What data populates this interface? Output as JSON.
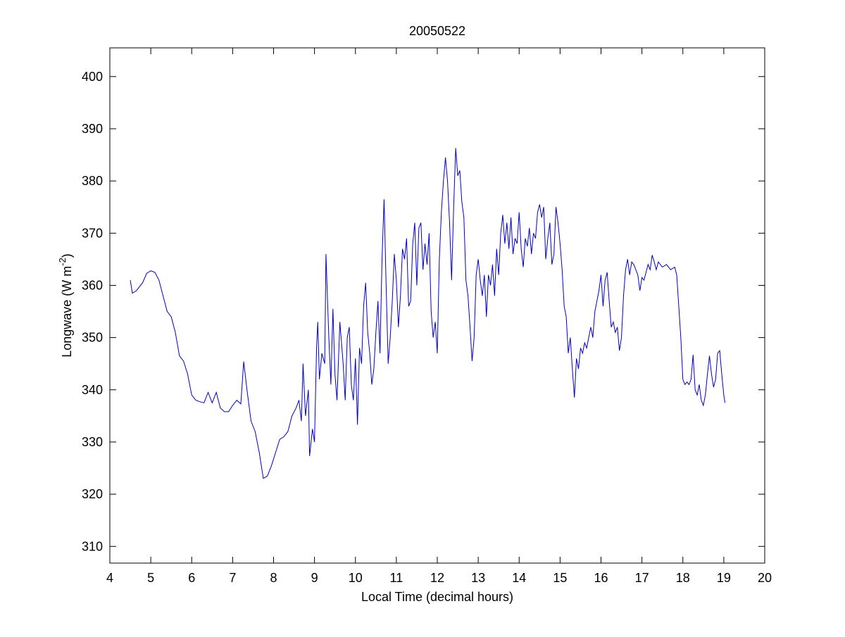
{
  "chart_data": {
    "type": "line",
    "title": "20050522",
    "xlabel": "Local Time (decimal hours)",
    "ylabel": {
      "text": "Longwave (W m",
      "superscript": "-2",
      "suffix": ")"
    },
    "xlim": [
      4,
      20
    ],
    "xticks": [
      4,
      5,
      6,
      7,
      8,
      9,
      10,
      11,
      12,
      13,
      14,
      15,
      16,
      17,
      18,
      19,
      20
    ],
    "ylim": [
      306.8,
      405.5
    ],
    "yticks": [
      310,
      320,
      330,
      340,
      350,
      360,
      370,
      380,
      390,
      400
    ],
    "grid": false,
    "box": true,
    "series": [
      {
        "color": "#0000c8",
        "x": [
          4.5,
          4.55,
          4.65,
          4.8,
          4.9,
          5.0,
          5.1,
          5.2,
          5.3,
          5.4,
          5.5,
          5.6,
          5.7,
          5.8,
          5.9,
          6.0,
          6.1,
          6.2,
          6.3,
          6.4,
          6.5,
          6.6,
          6.7,
          6.8,
          6.9,
          7.0,
          7.1,
          7.2,
          7.27,
          7.35,
          7.45,
          7.55,
          7.65,
          7.75,
          7.85,
          7.95,
          8.05,
          8.15,
          8.25,
          8.35,
          8.45,
          8.55,
          8.62,
          8.68,
          8.72,
          8.78,
          8.85,
          8.88,
          8.95,
          9.0,
          9.05,
          9.08,
          9.12,
          9.18,
          9.25,
          9.28,
          9.35,
          9.4,
          9.45,
          9.5,
          9.55,
          9.62,
          9.7,
          9.75,
          9.8,
          9.85,
          9.9,
          9.95,
          10.0,
          10.05,
          10.1,
          10.15,
          10.2,
          10.25,
          10.3,
          10.35,
          10.4,
          10.45,
          10.5,
          10.55,
          10.6,
          10.65,
          10.7,
          10.75,
          10.8,
          10.85,
          10.9,
          10.95,
          11.0,
          11.05,
          11.1,
          11.15,
          11.2,
          11.25,
          11.3,
          11.35,
          11.4,
          11.45,
          11.5,
          11.55,
          11.6,
          11.65,
          11.7,
          11.75,
          11.8,
          11.85,
          11.9,
          11.95,
          12.0,
          12.05,
          12.1,
          12.15,
          12.2,
          12.25,
          12.3,
          12.35,
          12.4,
          12.45,
          12.5,
          12.55,
          12.6,
          12.65,
          12.7,
          12.75,
          12.8,
          12.85,
          12.9,
          12.95,
          13.0,
          13.05,
          13.1,
          13.15,
          13.2,
          13.25,
          13.3,
          13.35,
          13.4,
          13.45,
          13.5,
          13.55,
          13.6,
          13.65,
          13.7,
          13.75,
          13.8,
          13.85,
          13.9,
          13.95,
          14.0,
          14.05,
          14.1,
          14.15,
          14.2,
          14.25,
          14.3,
          14.35,
          14.4,
          14.45,
          14.5,
          14.55,
          14.6,
          14.65,
          14.7,
          14.75,
          14.8,
          14.85,
          14.9,
          14.95,
          15.0,
          15.05,
          15.1,
          15.15,
          15.2,
          15.25,
          15.3,
          15.35,
          15.4,
          15.45,
          15.5,
          15.55,
          15.6,
          15.65,
          15.7,
          15.75,
          15.8,
          15.85,
          15.9,
          15.95,
          16.0,
          16.05,
          16.1,
          16.15,
          16.2,
          16.25,
          16.3,
          16.35,
          16.4,
          16.45,
          16.5,
          16.55,
          16.6,
          16.65,
          16.7,
          16.75,
          16.8,
          16.85,
          16.9,
          16.95,
          17.0,
          17.05,
          17.1,
          17.15,
          17.2,
          17.25,
          17.3,
          17.35,
          17.4,
          17.5,
          17.6,
          17.7,
          17.8,
          17.85,
          17.9,
          17.95,
          18.0,
          18.05,
          18.1,
          18.15,
          18.2,
          18.25,
          18.3,
          18.35,
          18.4,
          18.45,
          18.5,
          18.55,
          18.6,
          18.65,
          18.7,
          18.75,
          18.8,
          18.85,
          18.9,
          18.95,
          19.0,
          19.03
        ],
        "values": [
          361,
          358.5,
          359,
          360.5,
          362.3,
          362.8,
          362.5,
          361,
          358,
          355,
          354,
          351,
          346.5,
          345.5,
          343,
          339,
          338,
          337.7,
          337.5,
          339.5,
          337.5,
          339.5,
          336.5,
          335.8,
          335.8,
          337,
          338,
          337.3,
          345.4,
          340,
          334,
          332,
          328,
          323,
          323.5,
          325.5,
          328,
          330.5,
          331,
          332,
          335,
          336.5,
          338,
          334,
          345,
          335,
          340,
          327.3,
          332.5,
          330,
          348,
          353,
          342,
          347,
          345,
          366,
          350,
          341,
          355.5,
          343,
          338,
          353,
          345,
          338,
          350,
          352,
          341,
          338,
          346,
          333.3,
          348,
          345,
          356,
          360.5,
          351,
          347,
          341,
          344,
          351,
          357,
          347,
          365,
          376.5,
          360,
          345,
          350,
          357,
          366,
          361,
          352,
          358,
          367,
          365,
          369,
          356,
          357,
          368,
          372,
          360,
          371,
          372,
          363,
          368,
          364,
          370,
          355,
          350,
          353,
          347,
          365,
          374,
          380,
          384.5,
          380,
          372,
          361,
          375,
          386.3,
          381,
          382,
          376,
          373,
          361,
          358,
          352,
          345.5,
          350,
          362,
          365,
          361,
          358,
          362,
          354,
          362,
          360,
          364,
          358,
          367,
          362,
          370,
          373.5,
          368,
          372,
          367,
          373,
          366,
          369,
          368,
          374,
          367,
          363.5,
          369,
          367.5,
          371,
          366,
          370,
          369,
          374,
          375.5,
          373,
          375,
          365,
          369,
          372,
          364,
          366,
          375,
          372,
          368,
          363,
          356,
          354,
          347,
          350,
          344,
          338.5,
          346,
          344,
          348,
          347,
          349,
          348,
          350,
          352,
          350,
          355,
          357,
          359,
          362,
          356,
          361,
          362.5,
          357,
          352,
          353,
          351,
          352,
          347.5,
          350,
          358,
          363,
          365,
          362,
          364.5,
          364,
          363,
          362,
          359,
          361.5,
          361,
          362.5,
          364,
          363,
          365.8,
          364.5,
          363,
          364.5,
          363.5,
          364,
          363,
          363.5,
          362,
          356,
          350,
          342,
          341,
          341.5,
          341,
          342,
          346.7,
          340,
          339,
          341,
          338,
          337,
          339,
          343,
          346.5,
          343,
          340.5,
          342,
          347,
          347.5,
          343,
          339,
          337.5
        ]
      }
    ]
  }
}
